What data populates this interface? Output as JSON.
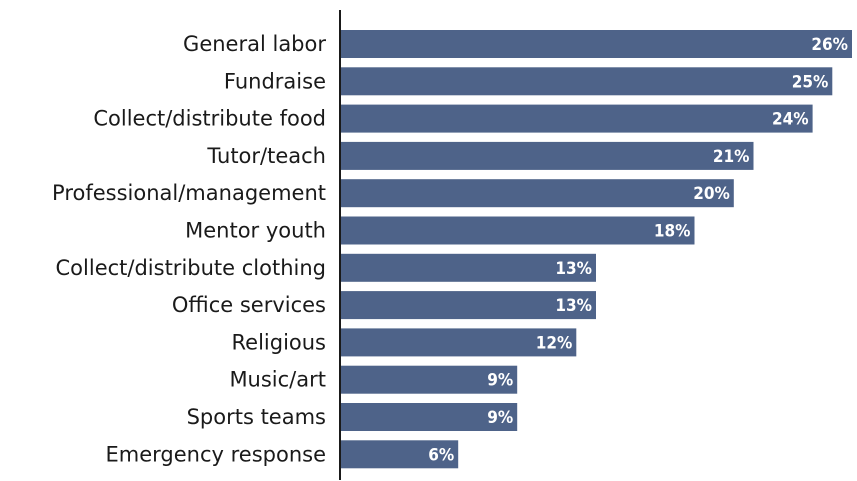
{
  "chart_data": {
    "type": "bar",
    "orientation": "horizontal",
    "categories": [
      "General labor",
      "Fundraise",
      "Collect/distribute food",
      "Tutor/teach",
      "Professional/management",
      "Mentor youth",
      "Collect/distribute clothing",
      "Office services",
      "Religious",
      "Music/art",
      "Sports teams",
      "Emergency response"
    ],
    "values": [
      26,
      25,
      24,
      21,
      20,
      18,
      13,
      13,
      12,
      9,
      9,
      6
    ],
    "value_labels": [
      "26%",
      "25%",
      "24%",
      "21%",
      "20%",
      "18%",
      "13%",
      "13%",
      "12%",
      "9%",
      "9%",
      "6%"
    ],
    "unit": "%",
    "xlim": [
      0,
      26
    ],
    "grid": false,
    "legend": "none",
    "bar_color": "#4e6389",
    "value_label_color": "#ffffff",
    "axis_color": "#1a1a1a"
  }
}
